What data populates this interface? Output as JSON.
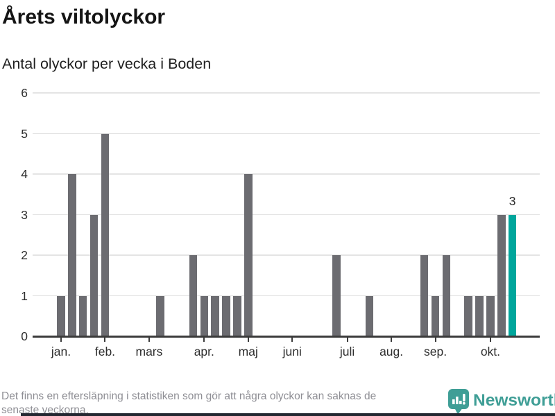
{
  "header": {
    "title": "Årets viltolyckor",
    "subtitle": "Antal olyckor per vecka i Boden"
  },
  "chart_data": {
    "type": "bar",
    "title": "Årets viltolyckor",
    "subtitle": "Antal olyckor per vecka i Boden",
    "x_unit": "vecka (week of year)",
    "ylabel": "",
    "xlabel": "",
    "ylim": [
      0,
      6
    ],
    "yticks": [
      0,
      1,
      2,
      3,
      4,
      5,
      6
    ],
    "grid": "horizontal",
    "values_by_week": [
      1,
      4,
      1,
      3,
      5,
      0,
      0,
      0,
      0,
      1,
      0,
      0,
      2,
      1,
      1,
      1,
      1,
      4,
      0,
      0,
      0,
      0,
      0,
      0,
      0,
      2,
      0,
      0,
      1,
      0,
      0,
      0,
      0,
      2,
      1,
      2,
      0,
      1,
      1,
      1,
      3,
      3
    ],
    "highlight_last": true,
    "annotation": {
      "text": "3",
      "week": 42
    },
    "month_ticks": [
      {
        "label": "jan.",
        "week": 1
      },
      {
        "label": "feb.",
        "week": 5
      },
      {
        "label": "mars",
        "week": 9
      },
      {
        "label": "apr.",
        "week": 14
      },
      {
        "label": "maj",
        "week": 18
      },
      {
        "label": "juni",
        "week": 22
      },
      {
        "label": "juli",
        "week": 27
      },
      {
        "label": "aug.",
        "week": 31
      },
      {
        "label": "sep.",
        "week": 35
      },
      {
        "label": "okt.",
        "week": 40
      }
    ],
    "colors": {
      "bar": "#6c6c71",
      "highlight": "#00a69c",
      "grid": "#e4e4e4",
      "axis": "#3b3b3b"
    }
  },
  "footer": {
    "note_lines": [
      "Det finns en eftersläpning i statistiken som gör att några olyckor kan saknas de",
      "senaste veckorna."
    ],
    "brand": "Newsworthy",
    "brand_color": "#3f9e96"
  }
}
